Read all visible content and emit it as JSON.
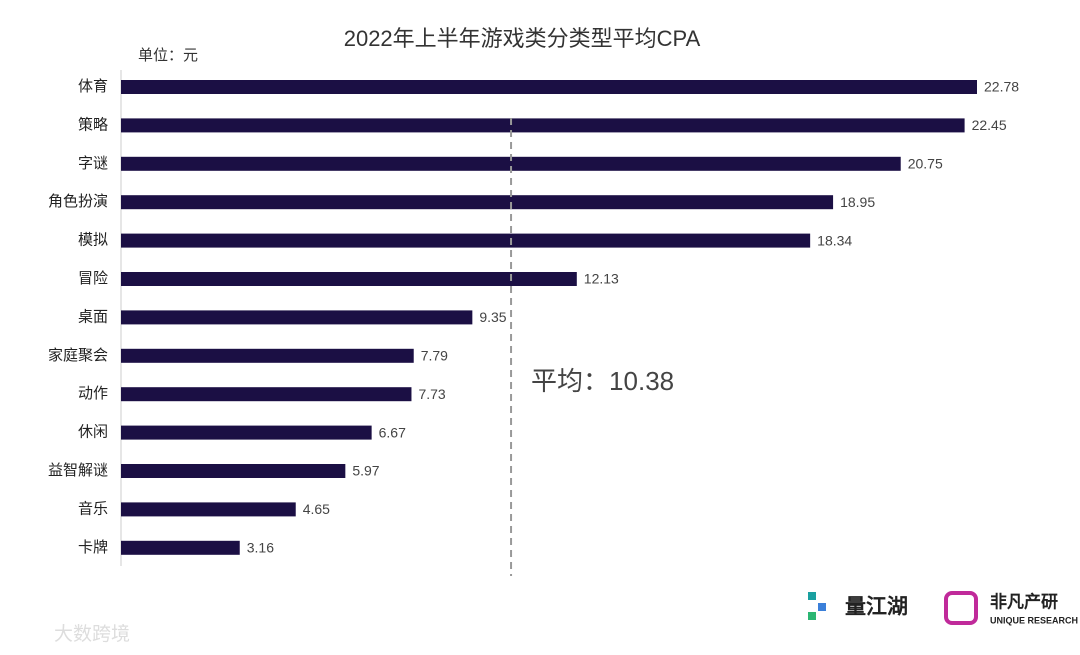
{
  "chart_data": {
    "type": "bar",
    "orientation": "horizontal",
    "title": "2022年上半年游戏类分类型平均CPA",
    "unit_label": "单位：元",
    "categories": [
      "体育",
      "策略",
      "字谜",
      "角色扮演",
      "模拟",
      "冒险",
      "桌面",
      "家庭聚会",
      "动作",
      "休闲",
      "益智解谜",
      "音乐",
      "卡牌"
    ],
    "values": [
      22.78,
      22.45,
      20.75,
      18.95,
      18.34,
      12.13,
      9.35,
      7.79,
      7.73,
      6.67,
      5.97,
      4.65,
      3.16
    ],
    "color": "#1b0f44",
    "reference_line": {
      "text": "平均：10.38",
      "value": 10.38,
      "color": "#999999"
    }
  },
  "logos": [
    "量江湖",
    "非凡产研",
    "UNIQUE RESEARCH"
  ],
  "watermark": "大数跨境"
}
